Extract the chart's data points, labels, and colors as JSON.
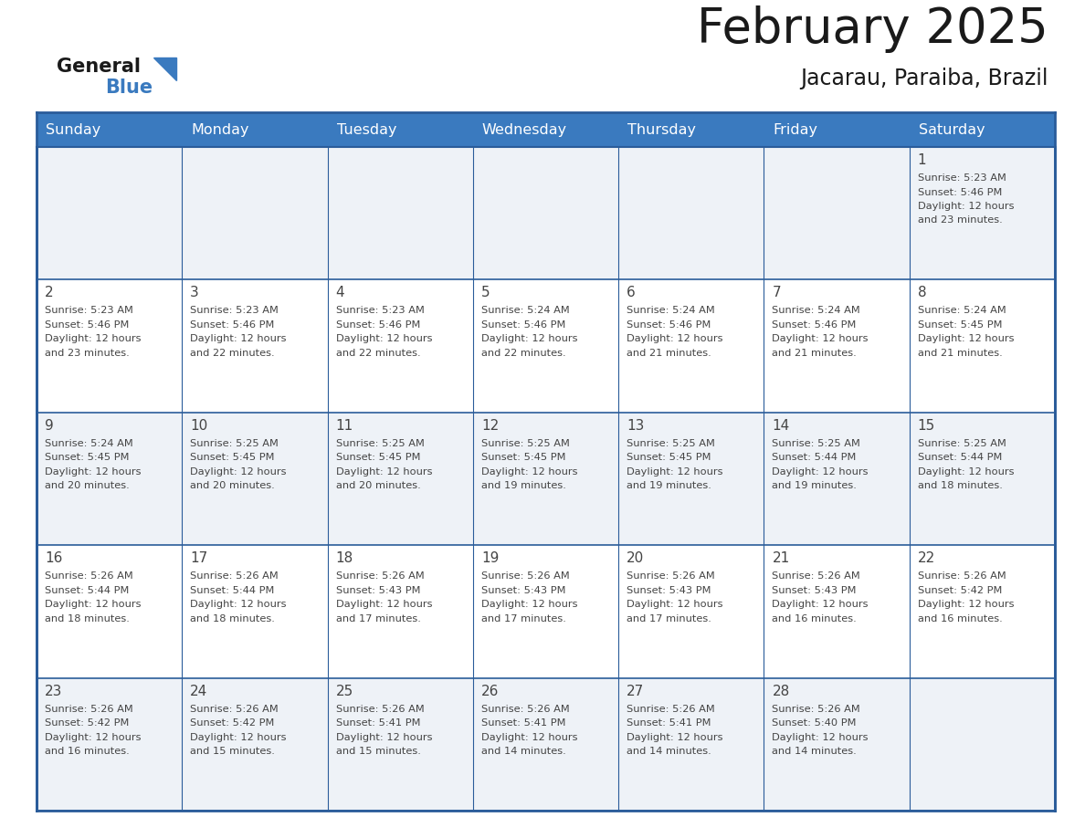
{
  "title": "February 2025",
  "subtitle": "Jacarau, Paraiba, Brazil",
  "header_bg": "#3a7abf",
  "header_text_color": "#ffffff",
  "cell_bg_odd": "#eef2f7",
  "cell_bg_even": "#ffffff",
  "text_color": "#444444",
  "border_color": "#2a5c9a",
  "days_of_week": [
    "Sunday",
    "Monday",
    "Tuesday",
    "Wednesday",
    "Thursday",
    "Friday",
    "Saturday"
  ],
  "calendar": [
    [
      null,
      null,
      null,
      null,
      null,
      null,
      {
        "day": "1",
        "sunrise": "5:23 AM",
        "sunset": "5:46 PM",
        "dl1": "Daylight: 12 hours",
        "dl2": "and 23 minutes."
      }
    ],
    [
      {
        "day": "2",
        "sunrise": "5:23 AM",
        "sunset": "5:46 PM",
        "dl1": "Daylight: 12 hours",
        "dl2": "and 23 minutes."
      },
      {
        "day": "3",
        "sunrise": "5:23 AM",
        "sunset": "5:46 PM",
        "dl1": "Daylight: 12 hours",
        "dl2": "and 22 minutes."
      },
      {
        "day": "4",
        "sunrise": "5:23 AM",
        "sunset": "5:46 PM",
        "dl1": "Daylight: 12 hours",
        "dl2": "and 22 minutes."
      },
      {
        "day": "5",
        "sunrise": "5:24 AM",
        "sunset": "5:46 PM",
        "dl1": "Daylight: 12 hours",
        "dl2": "and 22 minutes."
      },
      {
        "day": "6",
        "sunrise": "5:24 AM",
        "sunset": "5:46 PM",
        "dl1": "Daylight: 12 hours",
        "dl2": "and 21 minutes."
      },
      {
        "day": "7",
        "sunrise": "5:24 AM",
        "sunset": "5:46 PM",
        "dl1": "Daylight: 12 hours",
        "dl2": "and 21 minutes."
      },
      {
        "day": "8",
        "sunrise": "5:24 AM",
        "sunset": "5:45 PM",
        "dl1": "Daylight: 12 hours",
        "dl2": "and 21 minutes."
      }
    ],
    [
      {
        "day": "9",
        "sunrise": "5:24 AM",
        "sunset": "5:45 PM",
        "dl1": "Daylight: 12 hours",
        "dl2": "and 20 minutes."
      },
      {
        "day": "10",
        "sunrise": "5:25 AM",
        "sunset": "5:45 PM",
        "dl1": "Daylight: 12 hours",
        "dl2": "and 20 minutes."
      },
      {
        "day": "11",
        "sunrise": "5:25 AM",
        "sunset": "5:45 PM",
        "dl1": "Daylight: 12 hours",
        "dl2": "and 20 minutes."
      },
      {
        "day": "12",
        "sunrise": "5:25 AM",
        "sunset": "5:45 PM",
        "dl1": "Daylight: 12 hours",
        "dl2": "and 19 minutes."
      },
      {
        "day": "13",
        "sunrise": "5:25 AM",
        "sunset": "5:45 PM",
        "dl1": "Daylight: 12 hours",
        "dl2": "and 19 minutes."
      },
      {
        "day": "14",
        "sunrise": "5:25 AM",
        "sunset": "5:44 PM",
        "dl1": "Daylight: 12 hours",
        "dl2": "and 19 minutes."
      },
      {
        "day": "15",
        "sunrise": "5:25 AM",
        "sunset": "5:44 PM",
        "dl1": "Daylight: 12 hours",
        "dl2": "and 18 minutes."
      }
    ],
    [
      {
        "day": "16",
        "sunrise": "5:26 AM",
        "sunset": "5:44 PM",
        "dl1": "Daylight: 12 hours",
        "dl2": "and 18 minutes."
      },
      {
        "day": "17",
        "sunrise": "5:26 AM",
        "sunset": "5:44 PM",
        "dl1": "Daylight: 12 hours",
        "dl2": "and 18 minutes."
      },
      {
        "day": "18",
        "sunrise": "5:26 AM",
        "sunset": "5:43 PM",
        "dl1": "Daylight: 12 hours",
        "dl2": "and 17 minutes."
      },
      {
        "day": "19",
        "sunrise": "5:26 AM",
        "sunset": "5:43 PM",
        "dl1": "Daylight: 12 hours",
        "dl2": "and 17 minutes."
      },
      {
        "day": "20",
        "sunrise": "5:26 AM",
        "sunset": "5:43 PM",
        "dl1": "Daylight: 12 hours",
        "dl2": "and 17 minutes."
      },
      {
        "day": "21",
        "sunrise": "5:26 AM",
        "sunset": "5:43 PM",
        "dl1": "Daylight: 12 hours",
        "dl2": "and 16 minutes."
      },
      {
        "day": "22",
        "sunrise": "5:26 AM",
        "sunset": "5:42 PM",
        "dl1": "Daylight: 12 hours",
        "dl2": "and 16 minutes."
      }
    ],
    [
      {
        "day": "23",
        "sunrise": "5:26 AM",
        "sunset": "5:42 PM",
        "dl1": "Daylight: 12 hours",
        "dl2": "and 16 minutes."
      },
      {
        "day": "24",
        "sunrise": "5:26 AM",
        "sunset": "5:42 PM",
        "dl1": "Daylight: 12 hours",
        "dl2": "and 15 minutes."
      },
      {
        "day": "25",
        "sunrise": "5:26 AM",
        "sunset": "5:41 PM",
        "dl1": "Daylight: 12 hours",
        "dl2": "and 15 minutes."
      },
      {
        "day": "26",
        "sunrise": "5:26 AM",
        "sunset": "5:41 PM",
        "dl1": "Daylight: 12 hours",
        "dl2": "and 14 minutes."
      },
      {
        "day": "27",
        "sunrise": "5:26 AM",
        "sunset": "5:41 PM",
        "dl1": "Daylight: 12 hours",
        "dl2": "and 14 minutes."
      },
      {
        "day": "28",
        "sunrise": "5:26 AM",
        "sunset": "5:40 PM",
        "dl1": "Daylight: 12 hours",
        "dl2": "and 14 minutes."
      },
      null
    ]
  ]
}
